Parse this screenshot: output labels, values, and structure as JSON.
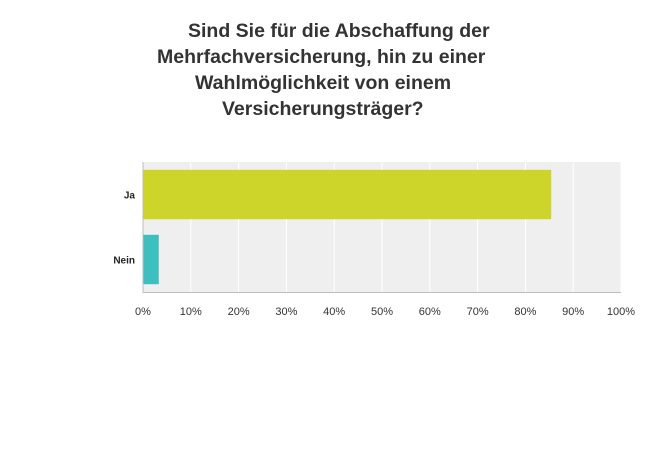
{
  "chart_data": {
    "type": "bar",
    "orientation": "horizontal",
    "title_lines": [
      "Sind Sie für die Abschaffung der",
      "Mehrfachversicherung, hin zu einer",
      "Wahlmöglichkeit von einem",
      "Versicherungsträger?"
    ],
    "categories": [
      "Ja",
      "Nein"
    ],
    "values": [
      85.4,
      3.3
    ],
    "bar_colors": [
      "#cdd52a",
      "#3dbfbf"
    ],
    "xlim": [
      0,
      100
    ],
    "xticks": [
      "0%",
      "10%",
      "20%",
      "30%",
      "40%",
      "50%",
      "60%",
      "70%",
      "80%",
      "90%",
      "100%"
    ],
    "grid": true,
    "background_color": "#efefef",
    "xlabel": "",
    "ylabel": ""
  }
}
